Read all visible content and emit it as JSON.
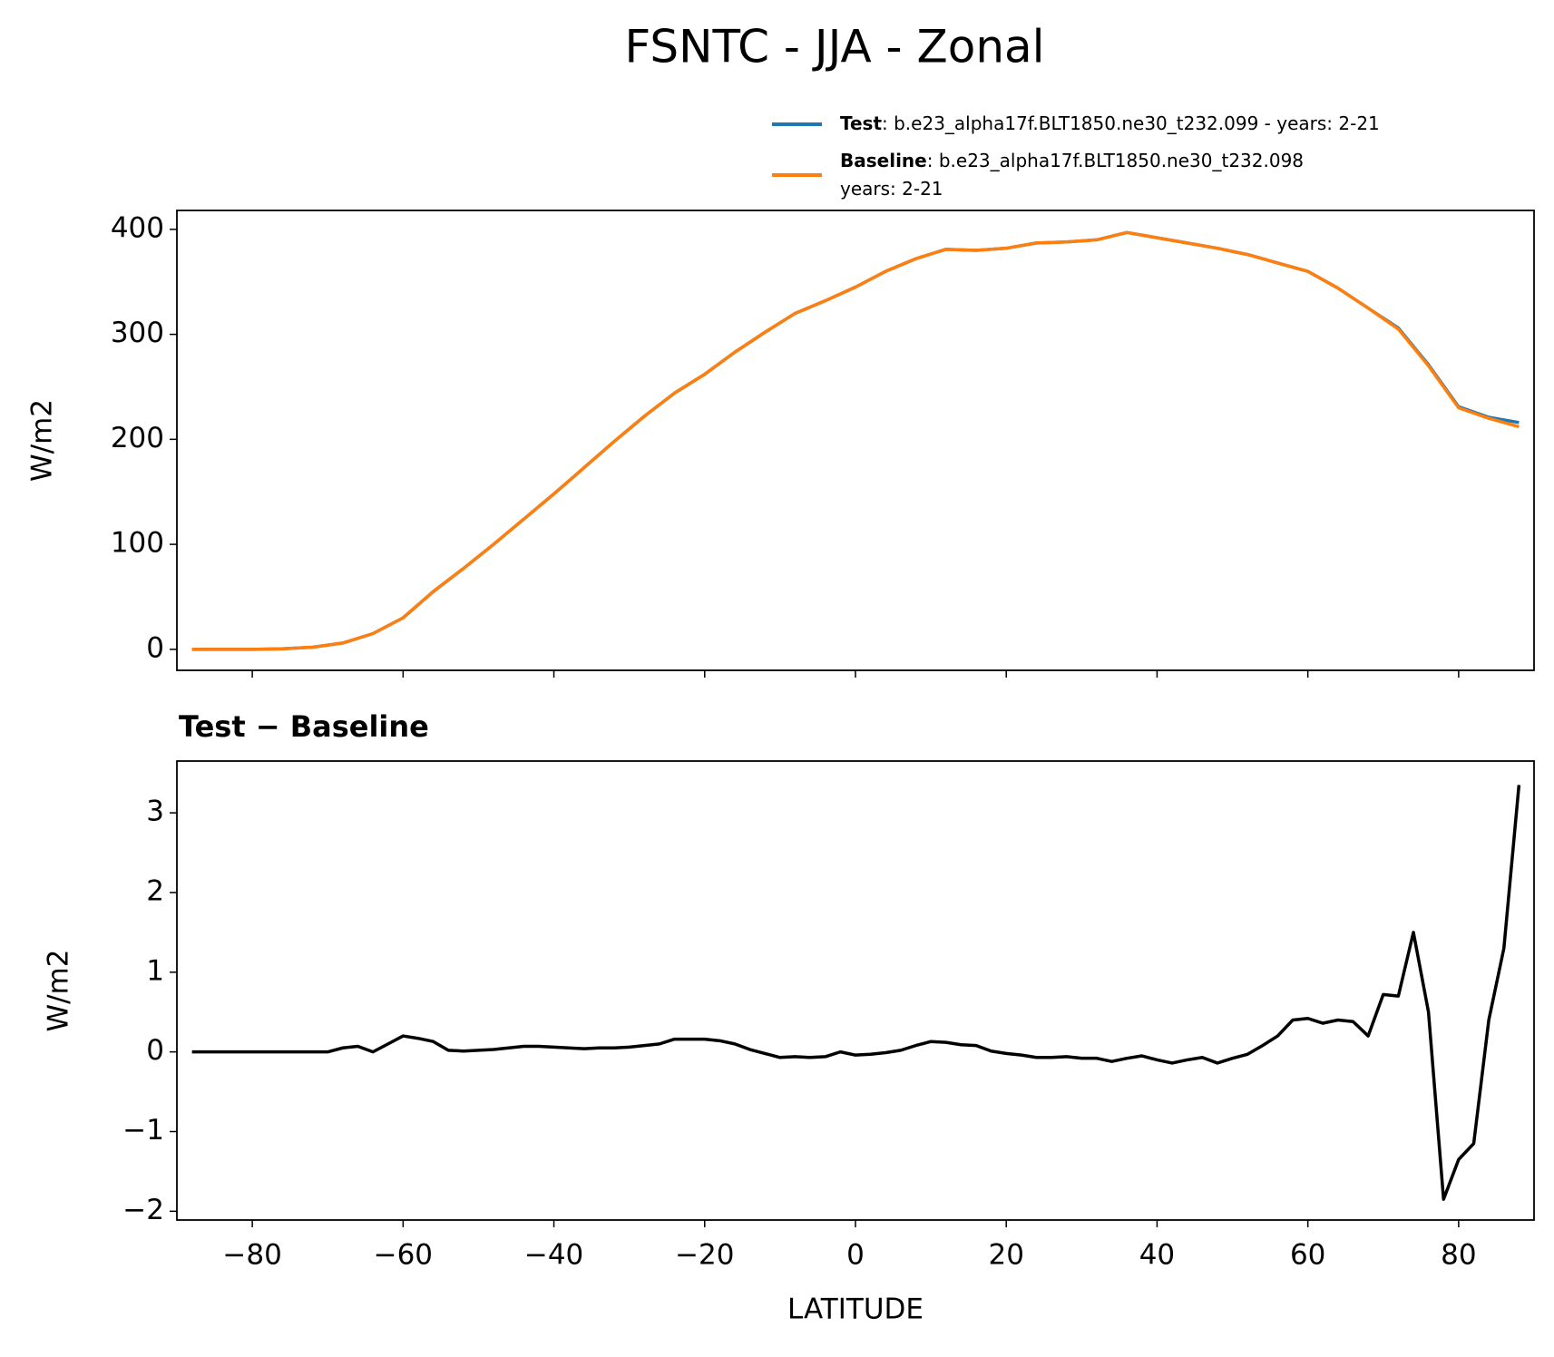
{
  "chart_data": [
    {
      "type": "line",
      "title": "FSNTC - JJA - Zonal",
      "ylabel": "W/m2",
      "x": [
        -88,
        -84,
        -80,
        -76,
        -72,
        -68,
        -64,
        -60,
        -56,
        -52,
        -48,
        -44,
        -40,
        -36,
        -32,
        -28,
        -24,
        -20,
        -16,
        -12,
        -8,
        -4,
        0,
        4,
        8,
        12,
        16,
        20,
        24,
        28,
        32,
        36,
        40,
        44,
        48,
        52,
        56,
        60,
        64,
        68,
        72,
        76,
        80,
        84,
        88
      ],
      "series": [
        {
          "name": "Test",
          "description": [
            ": b.e23_alpha17f.BLT1850.ne30_t232.099 - years: 2-21"
          ],
          "color": "#1f77b4",
          "values": [
            0,
            0,
            0,
            0.5,
            2,
            6,
            15,
            30,
            55,
            77,
            100,
            124,
            148,
            173,
            198,
            222,
            244,
            262,
            283,
            302,
            320,
            332,
            345,
            360,
            372,
            381,
            380,
            382,
            387,
            388,
            390,
            397,
            392,
            387,
            382,
            376,
            368,
            360,
            344,
            325,
            306,
            271,
            231,
            221,
            216
          ]
        },
        {
          "name": "Baseline",
          "description": [
            ": b.e23_alpha17f.BLT1850.ne30_t232.098",
            "years: 2-21"
          ],
          "color": "#ff7f0e",
          "values": [
            0,
            0,
            0,
            0.5,
            2,
            6,
            15,
            30,
            55,
            77,
            100,
            124,
            148,
            173,
            198,
            222,
            244,
            262,
            283,
            302,
            320,
            332,
            345,
            360,
            372,
            381,
            380,
            382,
            387,
            388,
            390,
            397,
            392,
            387,
            382,
            376,
            368,
            360,
            344,
            325,
            305,
            270,
            230,
            220,
            212
          ]
        }
      ],
      "xlim": [
        -90,
        90
      ],
      "xticks": [
        -80,
        -60,
        -40,
        -20,
        0,
        20,
        40,
        60,
        80
      ],
      "ylim": [
        -20,
        418
      ],
      "yticks": [
        0,
        100,
        200,
        300,
        400
      ]
    },
    {
      "type": "line",
      "title": "Test − Baseline",
      "xlabel": "LATITUDE",
      "ylabel": "W/m2",
      "x": [
        -88,
        -86,
        -84,
        -82,
        -80,
        -78,
        -76,
        -74,
        -72,
        -70,
        -68,
        -66,
        -64,
        -62,
        -60,
        -58,
        -56,
        -54,
        -52,
        -50,
        -48,
        -46,
        -44,
        -42,
        -40,
        -38,
        -36,
        -34,
        -32,
        -30,
        -28,
        -26,
        -24,
        -22,
        -20,
        -18,
        -16,
        -14,
        -12,
        -10,
        -8,
        -6,
        -4,
        -2,
        0,
        2,
        4,
        6,
        8,
        10,
        12,
        14,
        16,
        18,
        20,
        22,
        24,
        26,
        28,
        30,
        32,
        34,
        36,
        38,
        40,
        42,
        44,
        46,
        48,
        50,
        52,
        54,
        56,
        58,
        60,
        62,
        64,
        66,
        68,
        70,
        72,
        74,
        76,
        78,
        80,
        82,
        84,
        86,
        88
      ],
      "series": [
        {
          "name": "Test − Baseline",
          "color": "#000000",
          "values": [
            0,
            0,
            0,
            0,
            0,
            0,
            0,
            0,
            0,
            0,
            0.05,
            0.07,
            0,
            0.1,
            0.2,
            0.17,
            0.13,
            0.02,
            0.01,
            0.02,
            0.03,
            0.05,
            0.07,
            0.07,
            0.06,
            0.05,
            0.04,
            0.05,
            0.05,
            0.06,
            0.08,
            0.1,
            0.16,
            0.16,
            0.16,
            0.14,
            0.1,
            0.03,
            -0.02,
            -0.07,
            -0.06,
            -0.07,
            -0.06,
            0,
            -0.04,
            -0.03,
            -0.01,
            0.02,
            0.08,
            0.13,
            0.12,
            0.09,
            0.08,
            0.01,
            -0.02,
            -0.04,
            -0.07,
            -0.07,
            -0.06,
            -0.08,
            -0.08,
            -0.12,
            -0.08,
            -0.05,
            -0.1,
            -0.14,
            -0.1,
            -0.07,
            -0.14,
            -0.08,
            -0.03,
            0.08,
            0.2,
            0.4,
            0.42,
            0.36,
            0.4,
            0.38,
            0.2,
            0.72,
            0.7,
            1.5,
            0.5,
            -1.85,
            -1.35,
            -1.15,
            0.4,
            1.3,
            3.35
          ]
        }
      ],
      "xlim": [
        -90,
        90
      ],
      "xticks": [
        {
          "value": -80,
          "label": "−80"
        },
        {
          "value": -60,
          "label": "−60"
        },
        {
          "value": -40,
          "label": "−40"
        },
        {
          "value": -20,
          "label": "−20"
        },
        0,
        20,
        40,
        60,
        80
      ],
      "ylim": [
        -2.11,
        3.65
      ],
      "yticks": [
        {
          "value": -2,
          "label": "−2"
        },
        {
          "value": -1,
          "label": "−1"
        },
        0,
        1,
        2,
        3
      ]
    }
  ]
}
